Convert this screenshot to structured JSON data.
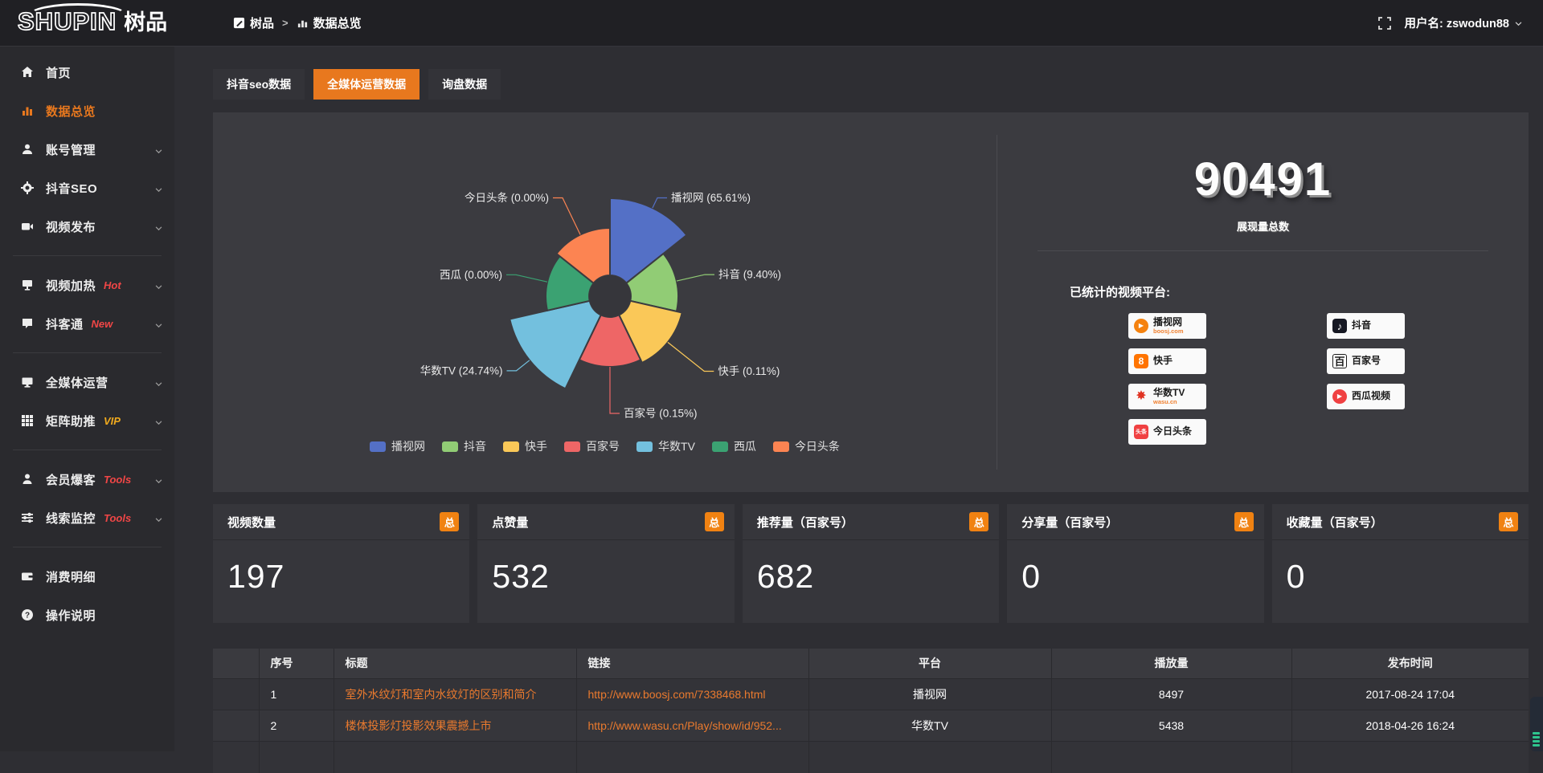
{
  "logo": {
    "latin": "SHUPIN",
    "cjk": "树品"
  },
  "topbar": {
    "breadcrumb": [
      {
        "label": "树品",
        "icon": "app"
      },
      {
        "label": "数据总览",
        "icon": "overview"
      }
    ],
    "separator": ">",
    "user_label": "用户名: zswodun88"
  },
  "sidebar": {
    "items": [
      {
        "id": "home",
        "icon": "home",
        "label": "首页"
      },
      {
        "id": "data-overview",
        "icon": "chart",
        "label": "数据总览",
        "active": true
      },
      {
        "id": "account-manage",
        "icon": "user",
        "label": "账号管理",
        "expandable": true
      },
      {
        "id": "douyin-seo",
        "icon": "gear",
        "label": "抖音SEO",
        "expandable": true
      },
      {
        "id": "video-publish",
        "icon": "camera",
        "label": "视频发布",
        "expandable": true
      },
      {
        "divider": true
      },
      {
        "id": "video-heat",
        "icon": "screen",
        "label": "视频加热",
        "badge": "Hot",
        "badge_style": "red",
        "expandable": true
      },
      {
        "id": "douketong",
        "icon": "chat",
        "label": "抖客通",
        "badge": "New",
        "badge_style": "red",
        "expandable": true
      },
      {
        "divider": true
      },
      {
        "id": "media-operation",
        "icon": "monitor",
        "label": "全媒体运营",
        "expandable": true
      },
      {
        "id": "matrix-boost",
        "icon": "grid",
        "label": "矩阵助推",
        "badge": "VIP",
        "badge_style": "vip",
        "expandable": true
      },
      {
        "divider": true
      },
      {
        "id": "member-baoke",
        "icon": "person",
        "label": "会员爆客",
        "badge": "Tools",
        "badge_style": "red",
        "expandable": true
      },
      {
        "id": "clue-monitor",
        "icon": "sliders",
        "label": "线索监控",
        "badge": "Tools",
        "badge_style": "red",
        "expandable": true
      },
      {
        "divider": true
      },
      {
        "id": "consume-detail",
        "icon": "wallet",
        "label": "消费明细"
      },
      {
        "id": "operation-guide",
        "icon": "question",
        "label": "操作说明"
      }
    ]
  },
  "tabs": [
    {
      "label": "抖音seo数据",
      "active": false
    },
    {
      "label": "全媒体运营数据",
      "active": true
    },
    {
      "label": "询盘数据",
      "active": false
    }
  ],
  "chart_data": {
    "type": "pie",
    "variant": "nightingale-rose",
    "unit": "%",
    "legend_position": "bottom",
    "slices": [
      {
        "name": "播视网",
        "value": 65.61,
        "label": "播视网 (65.61%)",
        "color": "#5470c6"
      },
      {
        "name": "抖音",
        "value": 9.4,
        "label": "抖音 (9.40%)",
        "color": "#91cc75"
      },
      {
        "name": "快手",
        "value": 0.11,
        "label": "快手 (0.11%)",
        "color": "#fac858"
      },
      {
        "name": "百家号",
        "value": 0.15,
        "label": "百家号 (0.15%)",
        "color": "#ee6666"
      },
      {
        "name": "华数TV",
        "value": 24.74,
        "label": "华数TV (24.74%)",
        "color": "#73c0de"
      },
      {
        "name": "西瓜",
        "value": 0.0,
        "label": "西瓜 (0.00%)",
        "color": "#3ba272"
      },
      {
        "name": "今日头条",
        "value": 0.0,
        "label": "今日头条 (0.00%)",
        "color": "#fc8452"
      }
    ],
    "legend": [
      "播视网",
      "抖音",
      "快手",
      "百家号",
      "华数TV",
      "西瓜",
      "今日头条"
    ]
  },
  "summary": {
    "value": "90491",
    "label": "展现量总数",
    "platforms_title": "已统计的视频平台:",
    "platforms": [
      {
        "id": "boosj",
        "name": "播视网",
        "sub": "boosj.com",
        "glyph": "▶"
      },
      {
        "id": "kuaishou",
        "name": "快手",
        "sub": "",
        "glyph": "8"
      },
      {
        "id": "wasu",
        "name": "华数TV",
        "sub": "wasu.cn",
        "glyph": "✸"
      },
      {
        "id": "toutiao",
        "name": "今日头条",
        "sub": "",
        "glyph": "头条"
      },
      {
        "id": "douyin",
        "name": "抖音",
        "sub": "",
        "glyph": "♪"
      },
      {
        "id": "baijiahao",
        "name": "百家号",
        "sub": "",
        "glyph": "百"
      },
      {
        "id": "xigua",
        "name": "西瓜视频",
        "sub": "",
        "glyph": "▶"
      }
    ]
  },
  "stat_cards": [
    {
      "title": "视频数量",
      "badge": "总",
      "value": "197"
    },
    {
      "title": "点赞量",
      "badge": "总",
      "value": "532"
    },
    {
      "title": "推荐量（百家号）",
      "badge": "总",
      "value": "682"
    },
    {
      "title": "分享量（百家号）",
      "badge": "总",
      "value": "0"
    },
    {
      "title": "收藏量（百家号）",
      "badge": "总",
      "value": "0"
    }
  ],
  "table": {
    "columns": [
      "序号",
      "标题",
      "链接",
      "平台",
      "播放量",
      "发布时间"
    ],
    "rows": [
      [
        "1",
        "室外水纹灯和室内水纹灯的区别和简介",
        "http://www.boosj.com/7338468.html",
        "播视网",
        "8497",
        "2017-08-24 17:04"
      ],
      [
        "2",
        "楼体投影灯投影效果震撼上市",
        "http://www.wasu.cn/Play/show/id/952...",
        "华数TV",
        "5438",
        "2018-04-26 16:24"
      ]
    ]
  },
  "colors": {
    "accent": "#e8781e",
    "badge_orange": "#f08212",
    "link_orange": "#ea7a2e",
    "hot_red": "#f04646",
    "vip_yellow": "#f0aa1e",
    "panel_bg": "#3b3b40"
  }
}
